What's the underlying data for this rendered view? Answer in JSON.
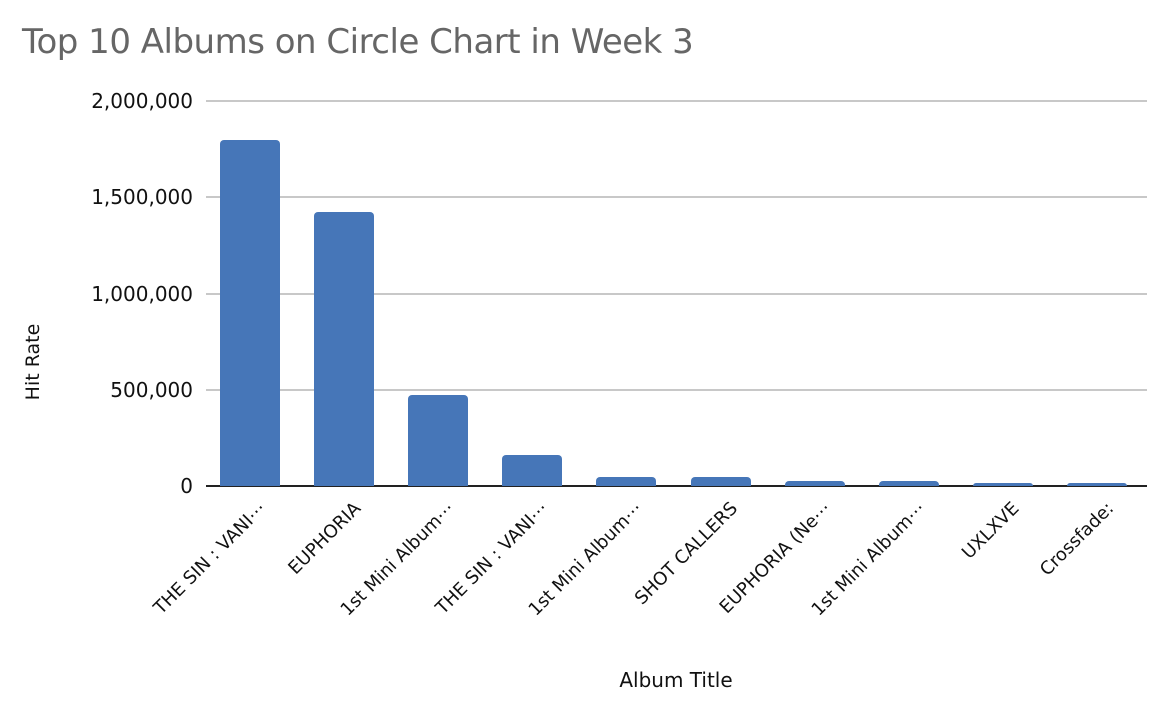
{
  "chart_data": {
    "type": "bar",
    "title": "Top 10 Albums on Circle Chart in Week 3",
    "xlabel": "Album Title",
    "ylabel": "Hit Rate",
    "ylim": [
      0,
      2000000
    ],
    "yticks": [
      "0",
      "500,000",
      "1,000,000",
      "1,500,000",
      "2,000,000"
    ],
    "grid": true,
    "legend": "none",
    "color": "#4676b8",
    "categories": [
      "THE SIN : VANI⋯",
      "EUPHORIA",
      "1st Mini Album⋯",
      "THE SIN : VANI⋯",
      "1st Mini Album⋯",
      "SHOT CALLERS",
      "EUPHORIA (Ne⋯",
      "1st Mini Album⋯",
      "UXLXVE",
      "Crossfade:"
    ],
    "values": [
      1797000,
      1422000,
      474000,
      161000,
      47000,
      46000,
      26000,
      26000,
      16000,
      15000
    ]
  }
}
